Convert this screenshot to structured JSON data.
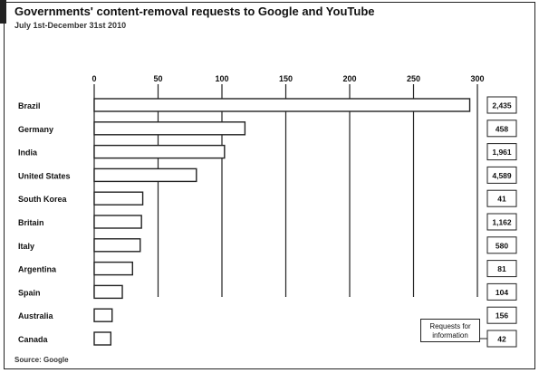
{
  "header": {
    "title": "Governments' content-removal requests to Google and YouTube",
    "subtitle": "July 1st-December 31st 2010",
    "source": "Source: Google"
  },
  "legend": {
    "label": "Requests for information"
  },
  "colors": {
    "accent": "#222222",
    "bar_fill": "#ffffff",
    "bar_stroke": "#222222",
    "grid": "#222222"
  },
  "chart_data": {
    "type": "bar",
    "orientation": "horizontal",
    "title": "Governments' content-removal requests to Google and YouTube",
    "subtitle": "July 1st-December 31st 2010",
    "categories": [
      "Brazil",
      "Germany",
      "India",
      "United States",
      "South Korea",
      "Britain",
      "Italy",
      "Argentina",
      "Spain",
      "Australia",
      "Canada"
    ],
    "series": [
      {
        "values": [
          294,
          118,
          102,
          80,
          38,
          37,
          36,
          30,
          22,
          14,
          13
        ]
      }
    ],
    "requests_for_information": [
      "2,435",
      "458",
      "1,961",
      "4,589",
      "41",
      "1,162",
      "580",
      "81",
      "104",
      "156",
      "42"
    ],
    "x_ticks": [
      0,
      50,
      100,
      150,
      200,
      250,
      300
    ],
    "xlim": [
      0,
      300
    ],
    "xlabel": "",
    "ylabel": "",
    "grid": true,
    "grid_axis": "x",
    "axis_position": "top",
    "legend_position": "bottom-right"
  }
}
